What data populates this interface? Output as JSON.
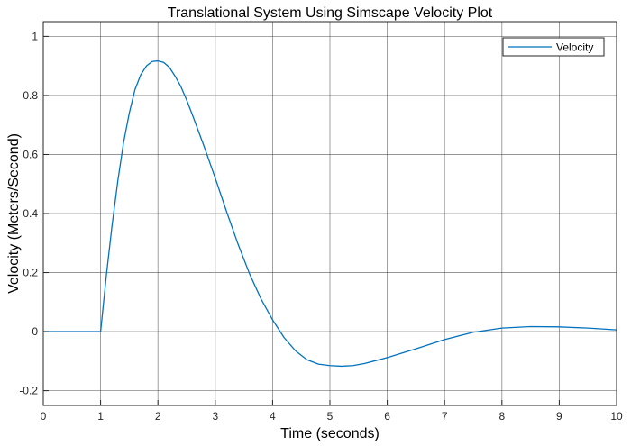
{
  "chart_data": {
    "type": "line",
    "title": "Translational System Using Simscape Velocity Plot",
    "xlabel": "Time (seconds)",
    "ylabel": "Velocity (Meters/Second)",
    "xlim": [
      0,
      10
    ],
    "ylim": [
      -0.25,
      1.05
    ],
    "x_ticks": [
      0,
      1,
      2,
      3,
      4,
      5,
      6,
      7,
      8,
      9,
      10
    ],
    "x_tick_labels": [
      "0",
      "1",
      "2",
      "3",
      "4",
      "5",
      "6",
      "7",
      "8",
      "9",
      "10"
    ],
    "y_ticks": [
      -0.2,
      0,
      0.2,
      0.4,
      0.6,
      0.8,
      1
    ],
    "y_tick_labels": [
      "-0.2",
      "0",
      "0.2",
      "0.4",
      "0.6",
      "0.8",
      "1"
    ],
    "grid": true,
    "legend_position": "top-right",
    "series": [
      {
        "name": "Velocity",
        "color": "#0072bd",
        "x": [
          0,
          0.5,
          1,
          1.1,
          1.2,
          1.3,
          1.4,
          1.5,
          1.6,
          1.7,
          1.8,
          1.9,
          2.0,
          2.1,
          2.2,
          2.3,
          2.4,
          2.5,
          2.6,
          2.8,
          3.0,
          3.2,
          3.4,
          3.6,
          3.8,
          4.0,
          4.2,
          4.4,
          4.6,
          4.8,
          5.0,
          5.2,
          5.4,
          5.6,
          5.8,
          6.0,
          6.5,
          7.0,
          7.5,
          8.0,
          8.5,
          9.0,
          9.5,
          10.0
        ],
        "y": [
          0,
          0,
          0,
          0.19,
          0.36,
          0.51,
          0.64,
          0.74,
          0.82,
          0.87,
          0.9,
          0.915,
          0.917,
          0.912,
          0.895,
          0.865,
          0.83,
          0.785,
          0.735,
          0.63,
          0.52,
          0.405,
          0.295,
          0.195,
          0.11,
          0.04,
          -0.02,
          -0.065,
          -0.095,
          -0.11,
          -0.115,
          -0.117,
          -0.115,
          -0.108,
          -0.098,
          -0.088,
          -0.058,
          -0.027,
          -0.002,
          0.012,
          0.017,
          0.016,
          0.012,
          0.006
        ]
      }
    ]
  }
}
